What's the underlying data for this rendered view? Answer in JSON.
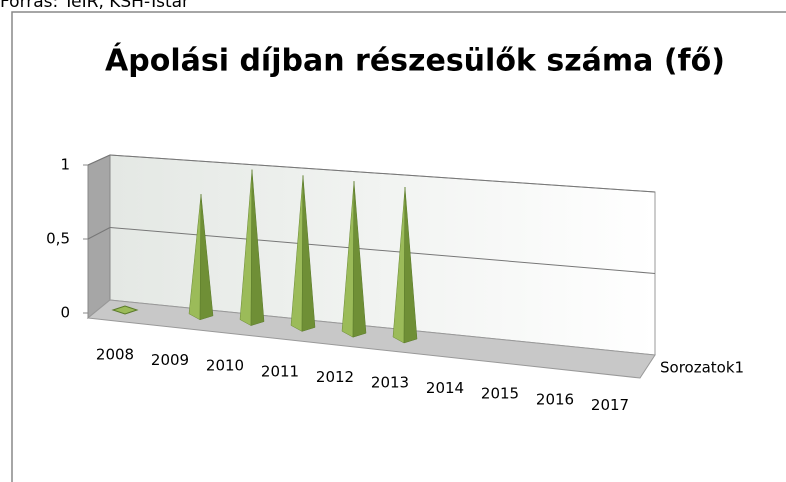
{
  "source": "Forrás: TeIR, KSH-Tstar",
  "chart_data": {
    "type": "pyramid3d",
    "title": "Ápolási díjban részesülők száma (fő)",
    "categories": [
      "2008",
      "2009",
      "2010",
      "2011",
      "2012",
      "2013",
      "2014",
      "2015",
      "2016",
      "2017"
    ],
    "series": [
      {
        "name": "Sorozatok1",
        "color": "#9bbb59",
        "values": [
          0,
          0.8,
          1,
          1,
          1,
          1,
          null,
          null,
          null,
          null
        ]
      }
    ],
    "ylim": [
      0,
      1
    ],
    "yticks": [
      0,
      {
        "value": 0.5,
        "label": "0,5"
      },
      1
    ],
    "grid": true
  }
}
